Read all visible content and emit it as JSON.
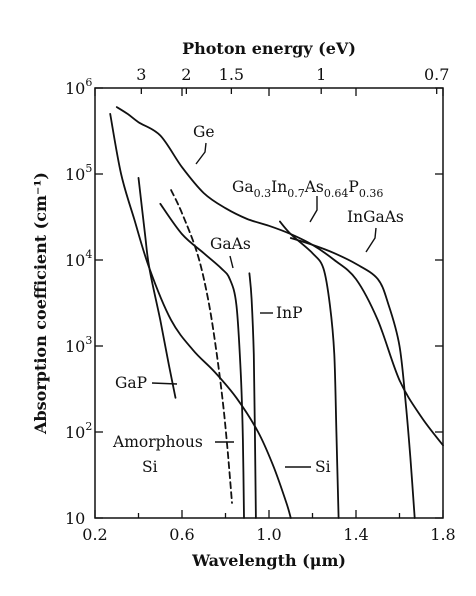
{
  "chart_data": {
    "type": "line",
    "xlabel": "Wavelength (μm)",
    "ylabel": "Absorption coefficient (cm⁻¹)",
    "top_axis_label": "Photon energy (eV)",
    "xlim": [
      0.2,
      1.8
    ],
    "ylim": [
      10,
      1000000
    ],
    "y_scale": "log",
    "x_ticks": [
      "0.2",
      "0.6",
      "1.0",
      "1.4",
      "1.8"
    ],
    "x_tick_values": [
      0.2,
      0.6,
      1.0,
      1.4,
      1.8
    ],
    "x_minor_ticks": [
      0.4,
      0.8,
      1.2,
      1.6
    ],
    "y_ticks": [
      {
        "value": 10,
        "base": "10",
        "exp": ""
      },
      {
        "value": 100,
        "base": "10",
        "exp": "2"
      },
      {
        "value": 1000,
        "base": "10",
        "exp": "3"
      },
      {
        "value": 10000,
        "base": "10",
        "exp": "4"
      },
      {
        "value": 100000,
        "base": "10",
        "exp": "5"
      },
      {
        "value": 1000000,
        "base": "10",
        "exp": "6"
      }
    ],
    "top_ticks": [
      {
        "label": "3",
        "wavelength": 0.413
      },
      {
        "label": "2",
        "wavelength": 0.62
      },
      {
        "label": "1.5",
        "wavelength": 0.827
      },
      {
        "label": "1",
        "wavelength": 1.24
      },
      {
        "label": "0.7",
        "wavelength": 1.771
      }
    ],
    "grid": false,
    "legend": "none (direct labels)",
    "series": [
      {
        "name": "Ge",
        "dashed": false,
        "points": [
          [
            0.3,
            600000
          ],
          [
            0.35,
            500000
          ],
          [
            0.4,
            400000
          ],
          [
            0.5,
            280000
          ],
          [
            0.6,
            120000
          ],
          [
            0.7,
            60000
          ],
          [
            0.8,
            40000
          ],
          [
            0.9,
            30000
          ],
          [
            1.0,
            25000
          ],
          [
            1.1,
            20000
          ],
          [
            1.2,
            15000
          ],
          [
            1.3,
            10000
          ],
          [
            1.4,
            6000
          ],
          [
            1.5,
            2000
          ],
          [
            1.6,
            400
          ],
          [
            1.7,
            150
          ],
          [
            1.8,
            70
          ]
        ]
      },
      {
        "name": "Si",
        "dashed": false,
        "points": [
          [
            0.27,
            500000
          ],
          [
            0.32,
            100000
          ],
          [
            0.38,
            30000
          ],
          [
            0.45,
            8000
          ],
          [
            0.55,
            2000
          ],
          [
            0.65,
            900
          ],
          [
            0.75,
            500
          ],
          [
            0.85,
            250
          ],
          [
            0.95,
            100
          ],
          [
            1.02,
            40
          ],
          [
            1.08,
            15
          ],
          [
            1.1,
            10
          ]
        ]
      },
      {
        "name": "GaAs",
        "dashed": false,
        "points": [
          [
            0.5,
            45000
          ],
          [
            0.6,
            20000
          ],
          [
            0.7,
            12000
          ],
          [
            0.78,
            8000
          ],
          [
            0.82,
            6000
          ],
          [
            0.85,
            3000
          ],
          [
            0.87,
            500
          ],
          [
            0.88,
            80
          ],
          [
            0.885,
            10
          ]
        ]
      },
      {
        "name": "InP",
        "dashed": false,
        "points": [
          [
            0.91,
            7000
          ],
          [
            0.92,
            3500
          ],
          [
            0.93,
            800
          ],
          [
            0.935,
            100
          ],
          [
            0.94,
            10
          ]
        ]
      },
      {
        "name": "GaP",
        "dashed": false,
        "points": [
          [
            0.4,
            90000
          ],
          [
            0.43,
            20000
          ],
          [
            0.45,
            8000
          ],
          [
            0.5,
            2000
          ],
          [
            0.54,
            600
          ],
          [
            0.57,
            250
          ]
        ]
      },
      {
        "name": "Amorphous Si",
        "dashed": true,
        "points": [
          [
            0.55,
            65000
          ],
          [
            0.6,
            35000
          ],
          [
            0.67,
            12000
          ],
          [
            0.72,
            3500
          ],
          [
            0.76,
            800
          ],
          [
            0.79,
            200
          ],
          [
            0.81,
            60
          ],
          [
            0.83,
            15
          ]
        ]
      },
      {
        "name": "Ga0.3In0.7As0.64P0.36",
        "dashed": false,
        "points": [
          [
            1.05,
            28000
          ],
          [
            1.1,
            20000
          ],
          [
            1.2,
            12000
          ],
          [
            1.25,
            8000
          ],
          [
            1.28,
            3000
          ],
          [
            1.3,
            800
          ],
          [
            1.31,
            100
          ],
          [
            1.32,
            10
          ]
        ]
      },
      {
        "name": "InGaAs",
        "dashed": false,
        "points": [
          [
            1.1,
            18000
          ],
          [
            1.2,
            15000
          ],
          [
            1.3,
            12000
          ],
          [
            1.4,
            9000
          ],
          [
            1.5,
            6000
          ],
          [
            1.55,
            3000
          ],
          [
            1.6,
            1000
          ],
          [
            1.63,
            200
          ],
          [
            1.65,
            50
          ],
          [
            1.67,
            10
          ]
        ]
      }
    ],
    "annotations": {
      "ge": "Ge",
      "gaas": "GaAs",
      "inp": "InP",
      "gap": "GaP",
      "si": "Si",
      "amorphous_line1": "Amorphous",
      "amorphous_line2": "Si",
      "quat_ga": "Ga",
      "quat_ga_sub": "0.3",
      "quat_in": "In",
      "quat_in_sub": "0.7",
      "quat_as": "As",
      "quat_as_sub": "0.64",
      "quat_p": "P",
      "quat_p_sub": "0.36",
      "ingaas": "InGaAs"
    }
  }
}
